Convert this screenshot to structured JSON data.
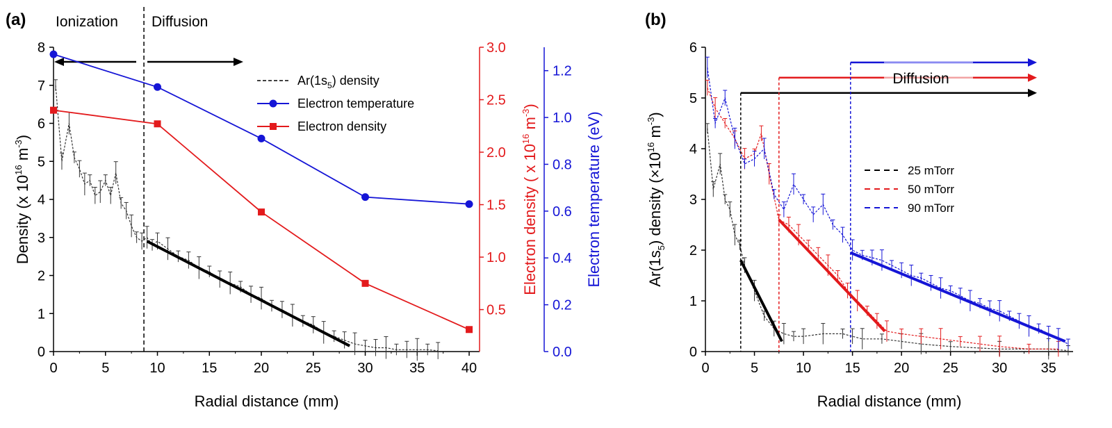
{
  "colors": {
    "black": "#000000",
    "red": "#e31a1c",
    "blue": "#1515d6",
    "blue_light": "#8a8af2",
    "red_light": "#f2a3a3"
  },
  "panel_a": {
    "label": "(a)",
    "region_left": "Ionization",
    "region_right": "Diffusion",
    "legend": {
      "ar": "Ar(1s",
      "ar_sub": "5",
      "ar_tail": ") density",
      "te": "Electron temperature",
      "ne": "Electron density"
    }
  },
  "panel_b": {
    "label": "(b)",
    "diffusion": "Diffusion",
    "legend": [
      "25 mTorr",
      "50 mTorr",
      "90 mTorr"
    ]
  },
  "chart_data": [
    {
      "type": "line",
      "x": [
        0,
        10,
        20,
        30,
        40
      ],
      "xlabel": "Radial distance (mm)",
      "xlim": [
        0,
        41
      ],
      "xticks": [
        0,
        5,
        10,
        15,
        20,
        25,
        30,
        35,
        40
      ],
      "ylabel_left": "Density (x 10^16 m^-3)",
      "ylim_left": [
        0,
        8
      ],
      "yticks_left": [
        0,
        1,
        2,
        3,
        4,
        5,
        6,
        7,
        8
      ],
      "ylabel_red": "Electron density ( x 10^16 m^-3)",
      "ylim_red": [
        0.1,
        3.0
      ],
      "yticks_red": [
        0.5,
        1.0,
        1.5,
        2.0,
        2.5,
        3.0
      ],
      "ylabel_blue": "Electron temperature (eV)",
      "ylim_blue": [
        0,
        1.3
      ],
      "yticks_blue": [
        0.0,
        0.2,
        0.4,
        0.6,
        0.8,
        1.0,
        1.2
      ],
      "boundary_x": 8.7,
      "series": [
        {
          "name": "Electron temperature",
          "axis": "blue",
          "x": [
            0,
            10,
            20,
            30,
            40
          ],
          "values": [
            1.27,
            1.13,
            0.91,
            0.66,
            0.63
          ]
        },
        {
          "name": "Electron density",
          "axis": "red",
          "x": [
            0,
            10,
            20,
            30,
            40
          ],
          "values": [
            2.4,
            2.27,
            1.43,
            0.75,
            0.31
          ]
        },
        {
          "name": "Ar(1s5) density",
          "axis": "left",
          "x": [
            0.2,
            0.8,
            1.5,
            2,
            2.5,
            3,
            3.5,
            4,
            4.5,
            5,
            5.5,
            6,
            6.5,
            7,
            7.5,
            8,
            8.5,
            9,
            9.5,
            10,
            11,
            12,
            13,
            14,
            15,
            16,
            17,
            18,
            19,
            20,
            21,
            22,
            23,
            24,
            25,
            26,
            27,
            28,
            29,
            30,
            31,
            32,
            33,
            34,
            35,
            36,
            37
          ],
          "values": [
            7.0,
            5.0,
            6.0,
            5.1,
            4.8,
            4.4,
            4.5,
            4.1,
            4.2,
            4.5,
            4.1,
            4.7,
            3.9,
            3.7,
            3.3,
            3.0,
            2.9,
            3.0,
            2.8,
            2.9,
            2.7,
            2.5,
            2.4,
            2.2,
            2.1,
            1.9,
            1.8,
            1.7,
            1.5,
            1.4,
            1.2,
            1.1,
            0.95,
            0.8,
            0.7,
            0.5,
            0.4,
            0.3,
            0.2,
            0.15,
            0.1,
            0.1,
            0.05,
            0.05,
            0.05,
            0.05,
            0.02
          ]
        }
      ],
      "fit_line": {
        "x": [
          9,
          28.5
        ],
        "values": [
          2.9,
          0.15
        ]
      }
    },
    {
      "type": "line",
      "xlabel": "Radial distance (mm)",
      "xlim": [
        0,
        37.5
      ],
      "xticks": [
        0,
        5,
        10,
        15,
        20,
        25,
        30,
        35
      ],
      "ylabel": "Ar(1s5) density (×10^16 m^-3)",
      "ylim": [
        0,
        6
      ],
      "yticks": [
        0,
        1,
        2,
        3,
        4,
        5,
        6
      ],
      "series": [
        {
          "name": "25 mTorr",
          "x": [
            0.2,
            0.8,
            1.5,
            2,
            2.5,
            3,
            3.5,
            4,
            5,
            6,
            7,
            8,
            9,
            10,
            12,
            14,
            15,
            16,
            18,
            20,
            22,
            25,
            30,
            35,
            37
          ],
          "values": [
            4.4,
            3.2,
            3.7,
            3.0,
            2.8,
            2.3,
            2.1,
            1.7,
            1.2,
            0.7,
            0.45,
            0.35,
            0.3,
            0.3,
            0.35,
            0.35,
            0.3,
            0.25,
            0.25,
            0.2,
            0.15,
            0.1,
            0.05,
            0.05,
            0.02
          ]
        },
        {
          "name": "50 mTorr",
          "x": [
            0.2,
            1,
            2,
            3,
            4,
            5,
            5.7,
            6.5,
            7.5,
            8.5,
            9.5,
            10.5,
            11.5,
            12.5,
            13.5,
            14.5,
            15.5,
            16.5,
            17.5,
            18.5,
            20,
            22,
            24,
            26,
            28,
            30,
            33,
            36
          ],
          "values": [
            5.2,
            4.8,
            4.5,
            4.2,
            3.8,
            3.9,
            4.3,
            3.5,
            2.6,
            2.5,
            2.3,
            2.1,
            1.9,
            1.7,
            1.5,
            1.2,
            1.0,
            0.8,
            0.6,
            0.4,
            0.35,
            0.3,
            0.25,
            0.2,
            0.15,
            0.1,
            0.05,
            0.05
          ]
        },
        {
          "name": "90 mTorr",
          "x": [
            0.2,
            1,
            2,
            3,
            4,
            5,
            6,
            7,
            8,
            9,
            10,
            11,
            12,
            13,
            14,
            15,
            16,
            17,
            18,
            19,
            20,
            21,
            22,
            23,
            24,
            25,
            26,
            27,
            28,
            29,
            30,
            31,
            32,
            33,
            34,
            35,
            36,
            37
          ],
          "values": [
            5.6,
            4.5,
            5.0,
            4.2,
            3.7,
            3.8,
            4.0,
            3.1,
            2.8,
            3.3,
            3.0,
            2.7,
            2.9,
            2.5,
            2.3,
            2.0,
            1.9,
            1.85,
            1.8,
            1.7,
            1.6,
            1.5,
            1.45,
            1.35,
            1.25,
            1.2,
            1.1,
            1.0,
            0.95,
            0.85,
            0.8,
            0.7,
            0.6,
            0.5,
            0.45,
            0.35,
            0.25,
            0.15
          ]
        }
      ],
      "fit_lines": [
        {
          "x": [
            3.6,
            7.8
          ],
          "values": [
            1.8,
            0.2
          ]
        },
        {
          "x": [
            7.5,
            18.3
          ],
          "values": [
            2.6,
            0.4
          ]
        },
        {
          "x": [
            14.8,
            36.7
          ],
          "values": [
            1.95,
            0.2
          ]
        }
      ],
      "onset_x": [
        3.6,
        7.5,
        14.8
      ],
      "arrow_y": [
        5.1,
        5.4,
        5.7
      ]
    }
  ]
}
